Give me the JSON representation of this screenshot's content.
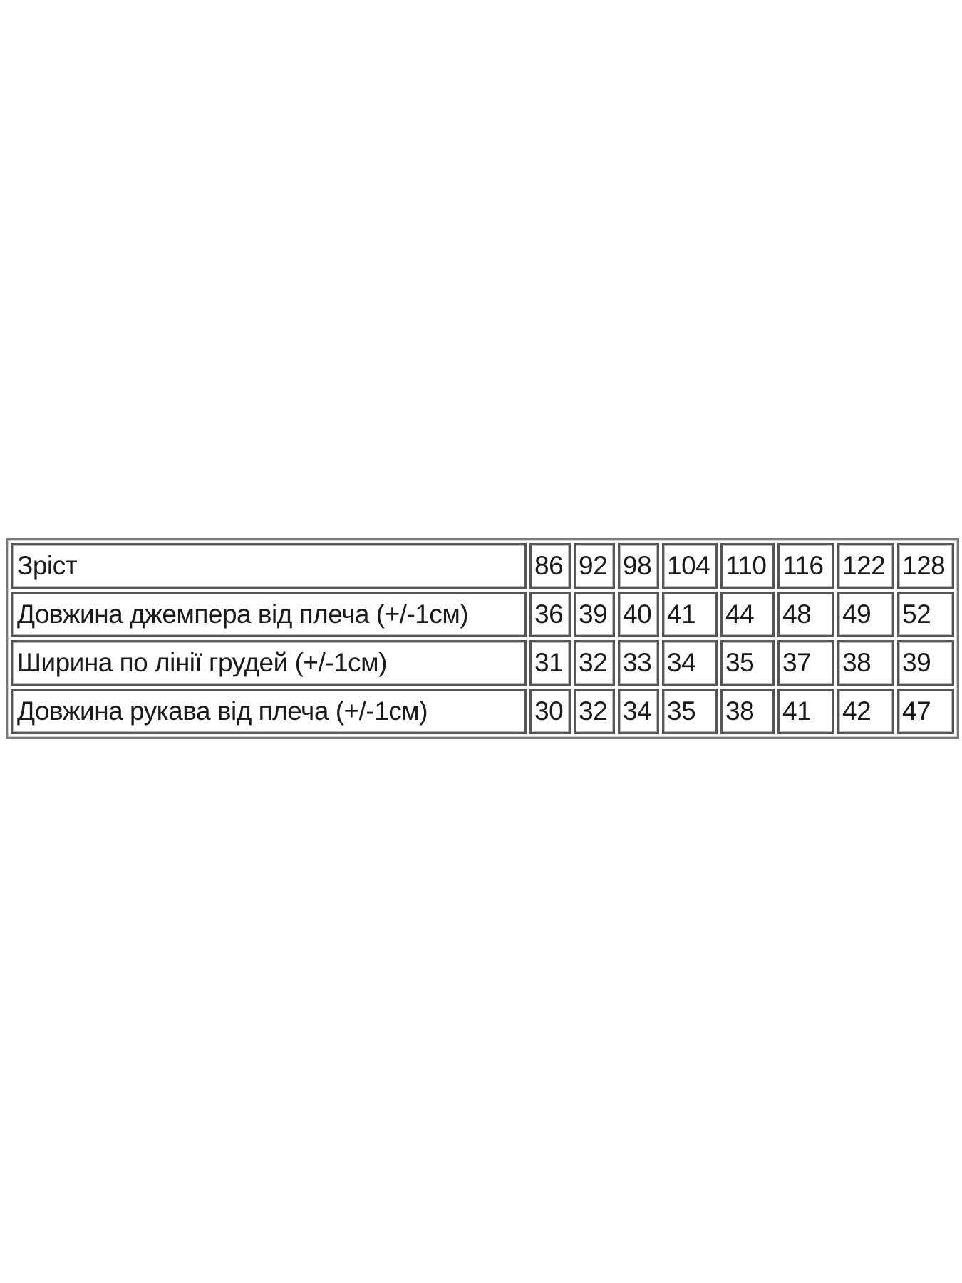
{
  "table": {
    "header": {
      "label": "Зріст",
      "values": [
        "86",
        "92",
        "98",
        "104",
        "110",
        "116",
        "122",
        "128"
      ]
    },
    "rows": [
      {
        "label": "Довжина джемпера від плеча (+/-1см)",
        "values": [
          "36",
          "39",
          "40",
          "41",
          "44",
          "48",
          "49",
          "52"
        ]
      },
      {
        "label": "Ширина по лінії грудей (+/-1см)",
        "values": [
          "31",
          "32",
          "33",
          "34",
          "35",
          "37",
          "38",
          "39"
        ]
      },
      {
        "label": "Довжина рукава від плеча (+/-1см)",
        "values": [
          "30",
          "32",
          "34",
          "35",
          "38",
          "41",
          "42",
          "47"
        ]
      }
    ]
  }
}
